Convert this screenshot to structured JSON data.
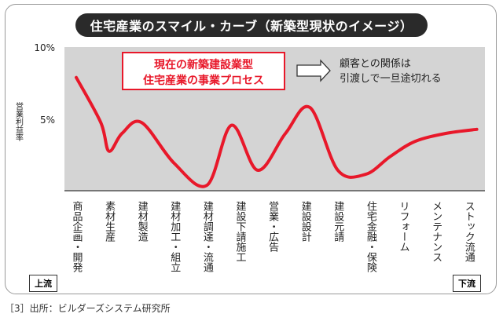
{
  "title": "住宅産業のスマイル・カーブ（新築型現状のイメージ）",
  "caption": "［3］出所：ビルダーズシステム研究所",
  "upstream_label": "上流",
  "downstream_label": "下流",
  "callout": {
    "line1": "現在の新築建設業型",
    "line2": "住宅産業の事業プロセス",
    "arrow_text_line1": "顧客との関係は",
    "arrow_text_line2": "引渡しで一旦途切れる"
  },
  "colors": {
    "curve": "#e8182a",
    "plot_bg": "#d4d4d4",
    "callout_border": "#e8182a",
    "callout_text": "#e8182a"
  },
  "chart_data": {
    "type": "line",
    "title": "住宅産業のスマイル・カーブ（新築型現状のイメージ）",
    "xlabel": "",
    "ylabel": "営業利益率",
    "ylim": [
      0,
      10
    ],
    "yticks": [
      "5%",
      "10%"
    ],
    "yticks_values": [
      5,
      10
    ],
    "categories": [
      "商品企画・開発",
      "素材生産",
      "建材製造",
      "建材加工・組立",
      "建材調達・流通",
      "建設下請施工",
      "営業・広告",
      "建設設計",
      "建設元請",
      "住宅金融・保険",
      "リフォーム",
      "メンテナンス",
      "ストック流通"
    ],
    "x": [
      0,
      0.75,
      1,
      1.4,
      2,
      3,
      4,
      4.75,
      5.55,
      6.4,
      7.15,
      8,
      8.85,
      9.6,
      10.35,
      11.3,
      12.25
    ],
    "values": [
      8.3,
      5.0,
      2.9,
      4.2,
      5.0,
      2.0,
      0.4,
      4.8,
      1.5,
      4.2,
      6.1,
      1.5,
      1.2,
      2.5,
      3.6,
      4.2,
      4.5
    ],
    "series": [
      {
        "name": "営業利益率",
        "values": [
          8.3,
          5.0,
          2.9,
          4.2,
          5.0,
          2.0,
          0.4,
          4.8,
          1.5,
          4.2,
          6.1,
          1.5,
          1.2,
          2.5,
          3.6,
          4.2,
          4.5
        ]
      }
    ]
  }
}
